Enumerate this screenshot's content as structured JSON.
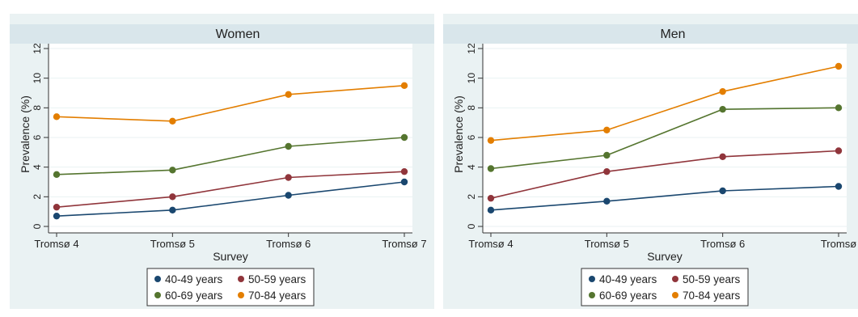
{
  "chart_data": [
    {
      "type": "line",
      "title": "Women",
      "xlabel": "Survey",
      "ylabel": "Prevalence (%)",
      "categories": [
        "Tromsø 4",
        "Tromsø 5",
        "Tromsø 6",
        "Tromsø 7"
      ],
      "ylim": [
        0,
        12
      ],
      "yticks": [
        "0",
        "2",
        "4",
        "6",
        "8",
        "10",
        "12"
      ],
      "grid": true,
      "legend_position": "bottom",
      "series": [
        {
          "name": "40-49 years",
          "color": "#1a476f",
          "values": [
            0.7,
            1.1,
            2.1,
            3.0
          ]
        },
        {
          "name": "50-59 years",
          "color": "#90353b",
          "values": [
            1.3,
            2.0,
            3.3,
            3.7
          ]
        },
        {
          "name": "60-69 years",
          "color": "#55752f",
          "values": [
            3.5,
            3.8,
            5.4,
            6.0
          ]
        },
        {
          "name": "70-84 years",
          "color": "#e37e00",
          "values": [
            7.4,
            7.1,
            8.9,
            9.5
          ]
        }
      ]
    },
    {
      "type": "line",
      "title": "Men",
      "xlabel": "Survey",
      "ylabel": "Prevalence (%)",
      "categories": [
        "Tromsø 4",
        "Tromsø 5",
        "Tromsø 6",
        "Tromsø"
      ],
      "ylim": [
        0,
        12
      ],
      "yticks": [
        "0",
        "2",
        "4",
        "6",
        "8",
        "10",
        "12"
      ],
      "grid": true,
      "legend_position": "bottom",
      "series": [
        {
          "name": "40-49 years",
          "color": "#1a476f",
          "values": [
            1.1,
            1.7,
            2.4,
            2.7
          ]
        },
        {
          "name": "50-59 years",
          "color": "#90353b",
          "values": [
            1.9,
            3.7,
            4.7,
            5.1
          ]
        },
        {
          "name": "60-69 years",
          "color": "#55752f",
          "values": [
            3.9,
            4.8,
            7.9,
            8.0
          ]
        },
        {
          "name": "70-84 years",
          "color": "#e37e00",
          "values": [
            5.8,
            6.5,
            9.1,
            10.8
          ]
        }
      ]
    }
  ]
}
